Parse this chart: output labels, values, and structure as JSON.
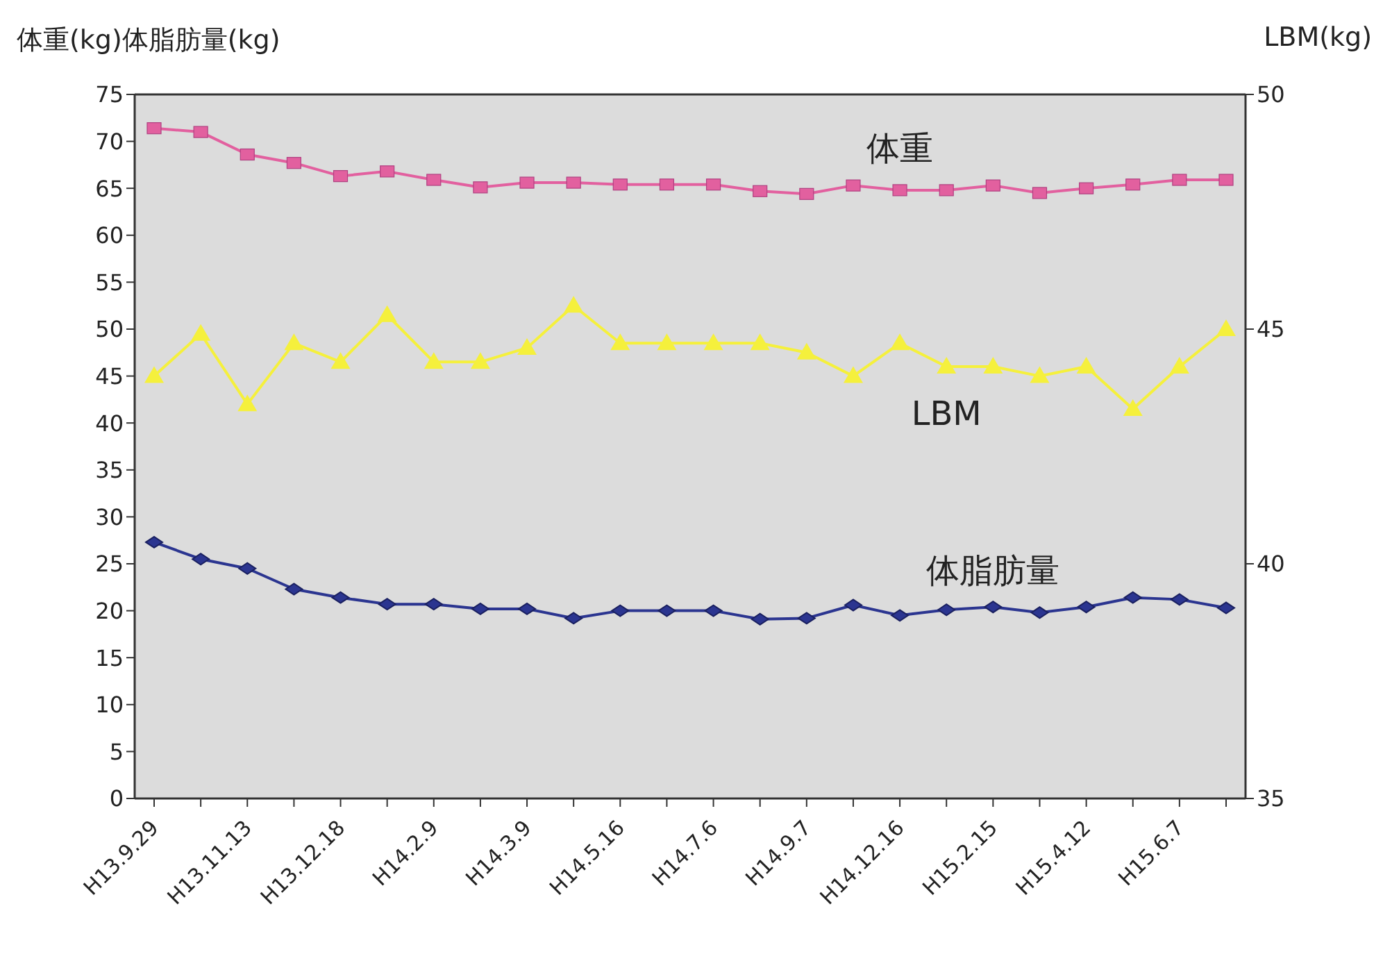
{
  "chart_data": {
    "type": "line",
    "ylabel": "体重(kg)体脂肪量(kg)",
    "y2label": "LBM(kg)",
    "categories": [
      "H13.9.29",
      null,
      "H13.11.13",
      null,
      "H13.12.18",
      null,
      "H14.2.9",
      null,
      "H14.3.9",
      null,
      "H14.5.16",
      null,
      "H14.7.6",
      null,
      "H14.9.7",
      null,
      "H14.12.16",
      null,
      "H15.2.15",
      null,
      "H15.4.12",
      null,
      "H15.6.7",
      null
    ],
    "ylim": [
      0,
      75
    ],
    "yticks": [
      0,
      5,
      10,
      15,
      20,
      25,
      30,
      35,
      40,
      45,
      50,
      55,
      60,
      65,
      70,
      75
    ],
    "y2lim": [
      35,
      50
    ],
    "y2ticks": [
      35,
      40,
      45,
      50
    ],
    "series": [
      {
        "name": "体重",
        "color": "#e2609f",
        "marker": "square",
        "values": [
          71.4,
          71.0,
          68.6,
          67.7,
          66.3,
          66.8,
          65.9,
          65.1,
          65.6,
          65.6,
          65.4,
          65.4,
          65.4,
          64.7,
          64.4,
          65.3,
          64.8,
          64.8,
          65.3,
          64.5,
          65.0,
          65.4,
          65.9,
          65.9
        ]
      },
      {
        "name": "LBM",
        "color": "#f5f03c",
        "marker": "triangle",
        "axis": "y2",
        "values": [
          44.0,
          44.9,
          43.4,
          44.7,
          44.3,
          45.3,
          44.3,
          44.3,
          44.6,
          45.5,
          44.7,
          44.7,
          44.7,
          44.7,
          44.5,
          44.0,
          44.7,
          44.2,
          44.2,
          44.0,
          44.2,
          43.3,
          44.2,
          45.0
        ]
      },
      {
        "name": "体脂肪量",
        "color": "#2b3590",
        "marker": "diamond",
        "values": [
          27.3,
          25.5,
          24.5,
          22.3,
          21.4,
          20.7,
          20.7,
          20.2,
          20.2,
          19.2,
          20.0,
          20.0,
          20.0,
          19.1,
          19.2,
          20.6,
          19.5,
          20.1,
          20.4,
          19.8,
          20.4,
          21.4,
          21.2,
          20.3
        ]
      }
    ]
  }
}
